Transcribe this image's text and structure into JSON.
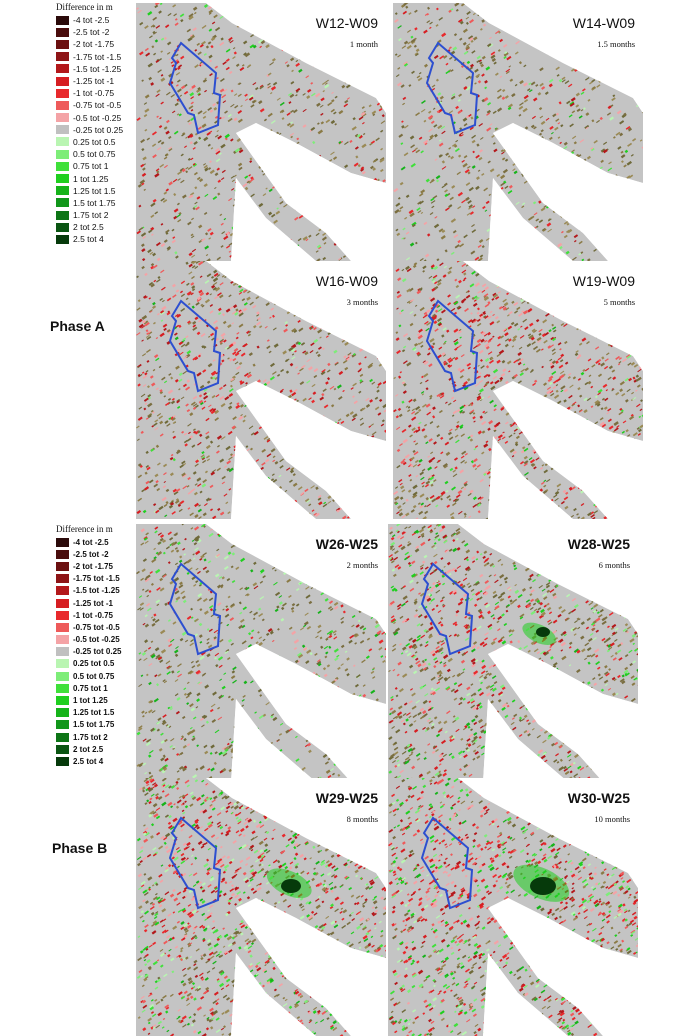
{
  "legend": {
    "title": "Difference in m",
    "entries": [
      {
        "label": "-4 tot -2.5",
        "color": "#2b0a0a"
      },
      {
        "label": "-2.5 tot -2",
        "color": "#4a0c0c"
      },
      {
        "label": "-2 tot -1.75",
        "color": "#6b0f10"
      },
      {
        "label": "-1.75 tot -1.5",
        "color": "#8e1416"
      },
      {
        "label": "-1.5 tot -1.25",
        "color": "#b3181b"
      },
      {
        "label": "-1.25 tot -1",
        "color": "#d61e22"
      },
      {
        "label": "-1 tot -0.75",
        "color": "#e8292c"
      },
      {
        "label": "-0.75 tot -0.5",
        "color": "#ee5a5a"
      },
      {
        "label": "-0.5 tot -0.25",
        "color": "#f4a3a6"
      },
      {
        "label": "-0.25 tot 0.25",
        "color": "#c0c0c0"
      },
      {
        "label": "0.25 tot 0.5",
        "color": "#b9f5b2"
      },
      {
        "label": "0.5 tot 0.75",
        "color": "#7ded78"
      },
      {
        "label": "0.75 tot 1",
        "color": "#3fe03a"
      },
      {
        "label": "1 tot 1.25",
        "color": "#1fcf1f"
      },
      {
        "label": "1.25 tot 1.5",
        "color": "#16b31a"
      },
      {
        "label": "1.5 tot 1.75",
        "color": "#11961a"
      },
      {
        "label": "1.75 tot 2",
        "color": "#0d7516"
      },
      {
        "label": "2 tot 2.5",
        "color": "#0a5512"
      },
      {
        "label": "2.5 tot 4",
        "color": "#063a0b"
      }
    ]
  },
  "phases": {
    "a": "Phase A",
    "b": "Phase B"
  },
  "panels": [
    {
      "title": "W12-W09",
      "time": "1 month",
      "phase": "a",
      "red": 0.15,
      "green": 0.05,
      "hole": 0
    },
    {
      "title": "W14-W09",
      "time": "1.5 months",
      "phase": "a",
      "red": 0.12,
      "green": 0.07,
      "hole": 0
    },
    {
      "title": "W16-W09",
      "time": "3 months",
      "phase": "a",
      "red": 0.28,
      "green": 0.06,
      "hole": 0
    },
    {
      "title": "W19-W09",
      "time": "5 months",
      "phase": "a",
      "red": 0.36,
      "green": 0.1,
      "hole": 0
    },
    {
      "title": "W26-W25",
      "time": "2 months",
      "phase": "b",
      "red": 0.1,
      "green": 0.18,
      "hole": 0
    },
    {
      "title": "W28-W25",
      "time": "6 months",
      "phase": "b",
      "red": 0.3,
      "green": 0.22,
      "hole": 1
    },
    {
      "title": "W29-W25",
      "time": "8 months",
      "phase": "b",
      "red": 0.38,
      "green": 0.3,
      "hole": 2
    },
    {
      "title": "W30-W25",
      "time": "10 months",
      "phase": "b",
      "red": 0.42,
      "green": 0.34,
      "hole": 3
    }
  ]
}
